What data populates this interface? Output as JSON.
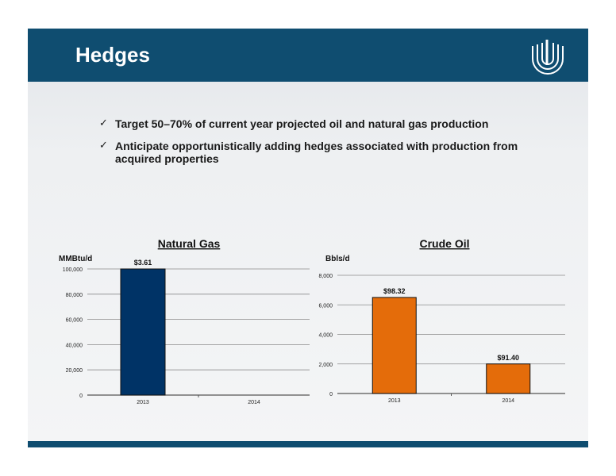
{
  "slide": {
    "title": "Hedges",
    "bullets": [
      "Target 50–70% of current year projected oil and natural gas production",
      "Anticipate opportunistically adding hedges associated with production from acquired properties"
    ],
    "check_icon": "✓"
  },
  "colors": {
    "header": "#0f4d70",
    "gas_bar": "#003366",
    "oil_bar": "#e46c0a"
  },
  "chart_data": [
    {
      "type": "bar",
      "title": "Natural Gas",
      "ylabel": "MMBtu/d",
      "categories": [
        "2013",
        "2014"
      ],
      "values": [
        100000,
        null
      ],
      "data_labels": [
        "$3.61",
        ""
      ],
      "ylim": [
        0,
        100000
      ],
      "yticks": [
        0,
        20000,
        40000,
        60000,
        80000,
        100000
      ],
      "ytick_labels": [
        "0",
        "20,000",
        "40,000",
        "60,000",
        "80,000",
        "100,000"
      ],
      "grid": true,
      "color": "#003366"
    },
    {
      "type": "bar",
      "title": "Crude Oil",
      "ylabel": "Bbls/d",
      "categories": [
        "2013",
        "2014"
      ],
      "values": [
        6500,
        2000
      ],
      "data_labels": [
        "$98.32",
        "$91.40"
      ],
      "ylim": [
        0,
        8000
      ],
      "yticks": [
        0,
        2000,
        4000,
        6000,
        8000
      ],
      "ytick_labels": [
        "0",
        "2,000",
        "4,000",
        "6,000",
        "8,000"
      ],
      "grid": true,
      "color": "#e46c0a"
    }
  ]
}
